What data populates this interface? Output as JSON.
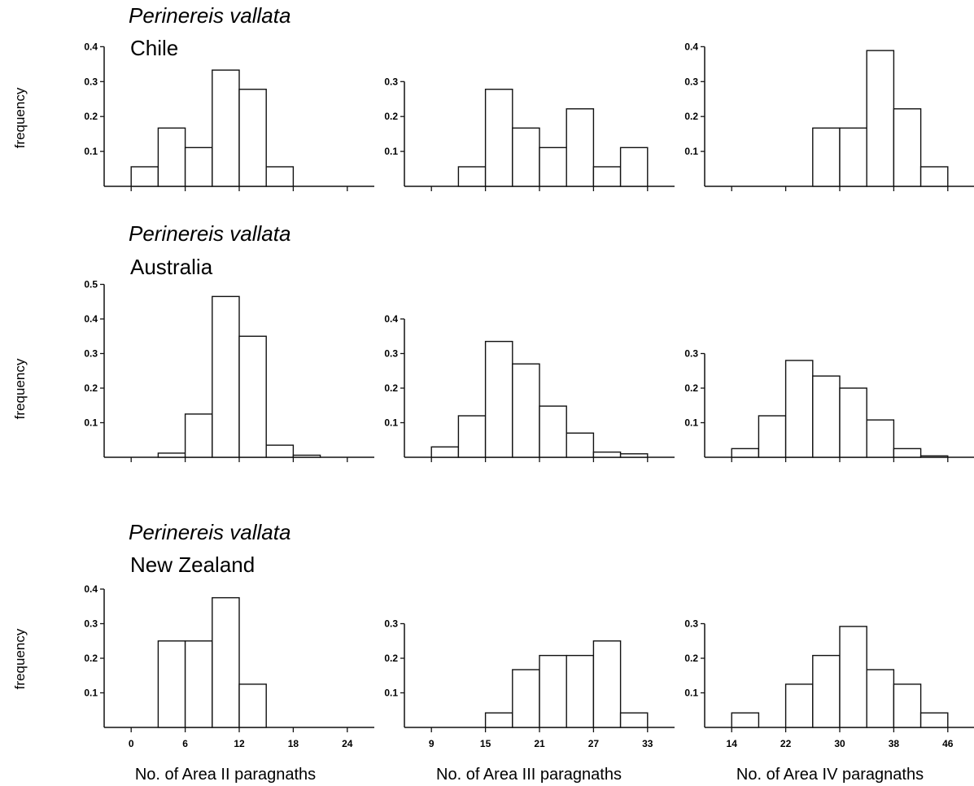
{
  "row_titles": [
    {
      "species": "Perinereis vallata",
      "region": "Chile"
    },
    {
      "species": "Perinereis vallata",
      "region": "Australia"
    },
    {
      "species": "Perinereis vallata",
      "region": "New Zealand"
    }
  ],
  "ylabel": "frequency",
  "column_labels": [
    "No. of Area II paragnaths",
    "No. of Area III paragnaths",
    "No. of Area IV paragnaths"
  ],
  "chart_data": [
    {
      "type": "bar",
      "panel": "Chile / Area II",
      "bin_start": 0,
      "bin_width": 3,
      "x_ticks": [
        0,
        6,
        12,
        18,
        24
      ],
      "x_range": [
        -3,
        27
      ],
      "y_ticks": [
        0.1,
        0.2,
        0.3,
        0.4
      ],
      "y_max": 0.4,
      "values": [
        0.056,
        0.167,
        0.111,
        0.333,
        0.278,
        0.056,
        0,
        0
      ]
    },
    {
      "type": "bar",
      "panel": "Chile / Area III",
      "bin_start": 9,
      "bin_width": 3,
      "x_ticks": [
        9,
        15,
        21,
        27,
        33
      ],
      "x_range": [
        6,
        36
      ],
      "y_ticks": [
        0.1,
        0.2,
        0.3
      ],
      "y_max": 0.3,
      "values": [
        0,
        0.056,
        0.278,
        0.167,
        0.111,
        0.222,
        0.056,
        0.111
      ]
    },
    {
      "type": "bar",
      "panel": "Chile / Area IV",
      "bin_start": 14,
      "bin_width": 4,
      "x_ticks": [
        14,
        22,
        30,
        38,
        46
      ],
      "x_range": [
        10,
        50
      ],
      "y_ticks": [
        0.1,
        0.2,
        0.3,
        0.4
      ],
      "y_max": 0.4,
      "values": [
        0,
        0,
        0,
        0.167,
        0.167,
        0.389,
        0.222,
        0.056
      ]
    },
    {
      "type": "bar",
      "panel": "Australia / Area II",
      "bin_start": 0,
      "bin_width": 3,
      "x_ticks": [
        0,
        6,
        12,
        18,
        24
      ],
      "x_range": [
        -3,
        27
      ],
      "y_ticks": [
        0.1,
        0.2,
        0.3,
        0.4,
        0.5
      ],
      "y_max": 0.5,
      "values": [
        0,
        0.012,
        0.125,
        0.465,
        0.35,
        0.035,
        0.006,
        0
      ]
    },
    {
      "type": "bar",
      "panel": "Australia / Area III",
      "bin_start": 9,
      "bin_width": 3,
      "x_ticks": [
        9,
        15,
        21,
        27,
        33
      ],
      "x_range": [
        6,
        36
      ],
      "y_ticks": [
        0.1,
        0.2,
        0.3,
        0.4
      ],
      "y_max": 0.4,
      "values": [
        0.03,
        0.12,
        0.335,
        0.27,
        0.148,
        0.07,
        0.015,
        0.01
      ]
    },
    {
      "type": "bar",
      "panel": "Australia / Area IV",
      "bin_start": 14,
      "bin_width": 4,
      "x_ticks": [
        14,
        22,
        30,
        38,
        46
      ],
      "x_range": [
        10,
        50
      ],
      "y_ticks": [
        0.1,
        0.2,
        0.3
      ],
      "y_max": 0.3,
      "values": [
        0.025,
        0.12,
        0.28,
        0.235,
        0.2,
        0.108,
        0.025,
        0.004
      ]
    },
    {
      "type": "bar",
      "panel": "New Zealand / Area II",
      "bin_start": 0,
      "bin_width": 3,
      "x_ticks": [
        0,
        6,
        12,
        18,
        24
      ],
      "x_range": [
        -3,
        27
      ],
      "y_ticks": [
        0.1,
        0.2,
        0.3,
        0.4
      ],
      "y_max": 0.4,
      "values": [
        0,
        0.25,
        0.25,
        0.375,
        0.125,
        0,
        0,
        0
      ]
    },
    {
      "type": "bar",
      "panel": "New Zealand / Area III",
      "bin_start": 9,
      "bin_width": 3,
      "x_ticks": [
        9,
        15,
        21,
        27,
        33
      ],
      "x_range": [
        6,
        36
      ],
      "y_ticks": [
        0.1,
        0.2,
        0.3
      ],
      "y_max": 0.3,
      "values": [
        0,
        0,
        0.042,
        0.167,
        0.208,
        0.208,
        0.25,
        0.042
      ]
    },
    {
      "type": "bar",
      "panel": "New Zealand / Area IV",
      "bin_start": 14,
      "bin_width": 4,
      "x_ticks": [
        14,
        22,
        30,
        38,
        46
      ],
      "x_range": [
        10,
        50
      ],
      "y_ticks": [
        0.1,
        0.2,
        0.3
      ],
      "y_max": 0.3,
      "values": [
        0.042,
        0,
        0.125,
        0.208,
        0.292,
        0.167,
        0.125,
        0.042
      ]
    }
  ]
}
